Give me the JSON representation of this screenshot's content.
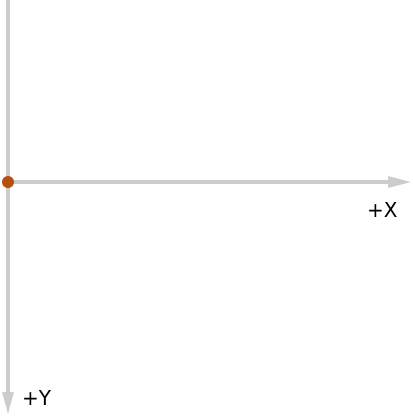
{
  "axes": {
    "x_label": "+X",
    "y_label": "+Y",
    "axis_color": "#cccccc",
    "label_color": "#000000"
  },
  "origin_point": {
    "color": "#b5500f"
  }
}
